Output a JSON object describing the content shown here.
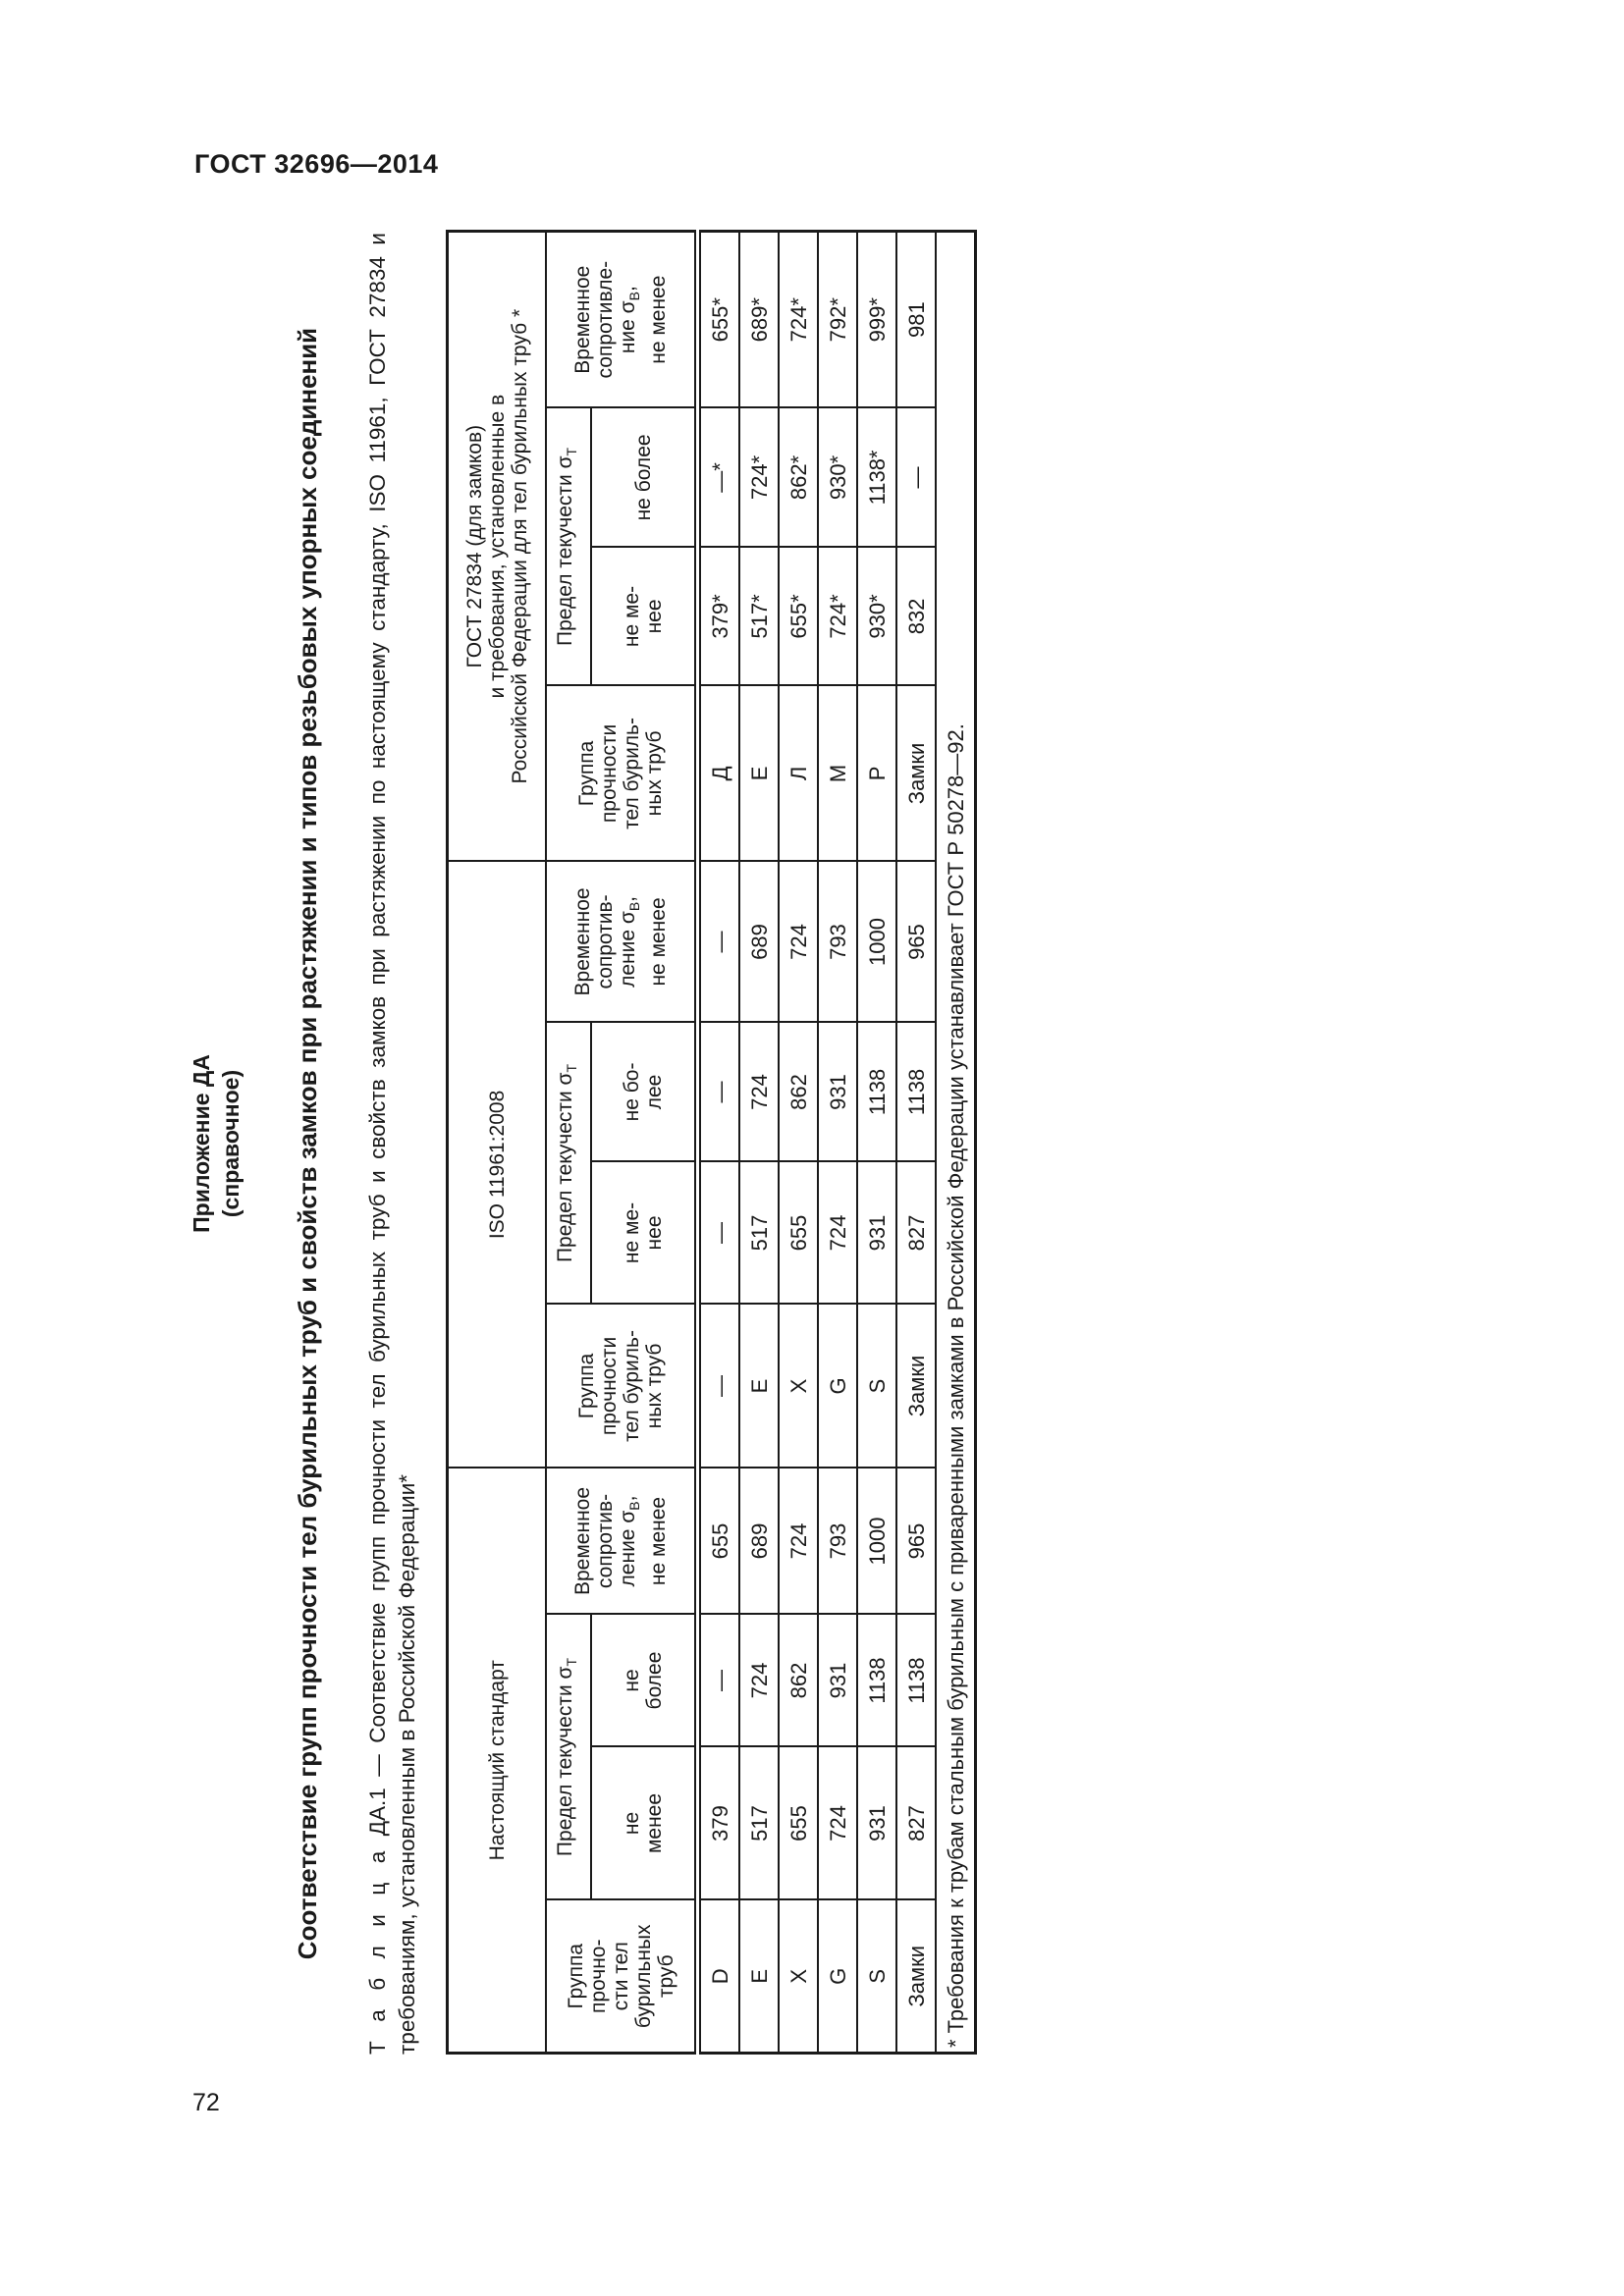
{
  "doc_id": "ГОСТ 32696—2014",
  "page_number": "72",
  "annex": {
    "title": "Приложение ДА",
    "subtitle": "(справочное)"
  },
  "heading": "Соответствие групп прочности тел бурильных труб и свойств замков при растяжении и типов резьбовых упорных соединений",
  "caption": {
    "label": "Т а б л и ц а",
    "line1": "ДА.1 — Соответствие групп прочности тел бурильных труб и свойств замков при растяжении по настоящему стандарту, ISO 11961, ГОСТ 27834 и",
    "line2": "требованиям, установленным в Российской Федерации*"
  },
  "table": {
    "sections": [
      "Настоящий стандарт",
      "ISO 11961:2008",
      "ГОСТ 27834 (для замков)\nи требования, установленные в\nРоссийской Федерации для тел бурильных труб *"
    ],
    "headers": [
      {
        "group": "Группа\nпрочно-\nсти тел\nбурильных\nтруб",
        "yield": {
          "pre": "Предел текучести σ",
          "sub": "Т"
        },
        "min": "не\nменее",
        "max": "не\nболее",
        "tensile": {
          "pre": "Временное\nсопротив-\nление σ",
          "sub": "В",
          "post": ",\nне менее"
        }
      },
      {
        "group": "Группа\nпрочности\nтел буриль-\nных труб",
        "yield": {
          "pre": "Предел текучести σ",
          "sub": "Т"
        },
        "min": "не ме-\nнее",
        "max": "не бо-\nлее",
        "tensile": {
          "pre": "Временное\nсопротив-\nление σ",
          "sub": "В",
          "post": ",\nне менее"
        }
      },
      {
        "group": "Группа\nпрочности\nтел буриль-\nных труб",
        "yield": {
          "pre": "Предел текучести σ",
          "sub": "Т"
        },
        "min": "не ме-\nнее",
        "max": "не более",
        "tensile": {
          "pre": "Временное\nсопротивле-\nние σ",
          "sub": "В",
          "post": ",\nне менее"
        }
      }
    ],
    "rows": [
      [
        "D",
        "379",
        "—",
        "655",
        "—",
        "—",
        "—",
        "—",
        "Д",
        "379*",
        "—*",
        "655*"
      ],
      [
        "E",
        "517",
        "724",
        "689",
        "E",
        "517",
        "724",
        "689",
        "Е",
        "517*",
        "724*",
        "689*"
      ],
      [
        "X",
        "655",
        "862",
        "724",
        "X",
        "655",
        "862",
        "724",
        "Л",
        "655*",
        "862*",
        "724*"
      ],
      [
        "G",
        "724",
        "931",
        "793",
        "G",
        "724",
        "931",
        "793",
        "М",
        "724*",
        "930*",
        "792*"
      ],
      [
        "S",
        "931",
        "1138",
        "1000",
        "S",
        "931",
        "1138",
        "1000",
        "Р",
        "930*",
        "1138*",
        "999*"
      ],
      [
        "Замки",
        "827",
        "1138",
        "965",
        "Замки",
        "827",
        "1138",
        "965",
        "Замки",
        "832",
        "—",
        "981"
      ]
    ],
    "footnote": "* Требования к трубам стальным бурильным с приваренными замками в Российской Федерации устанавливает ГОСТ Р 50278—92."
  }
}
